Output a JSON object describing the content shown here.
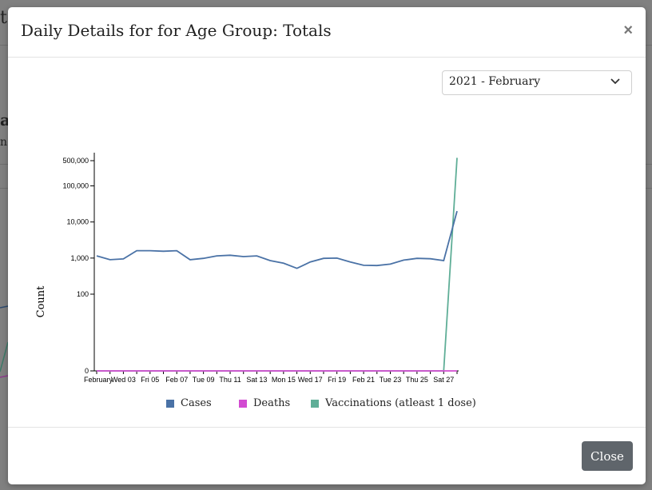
{
  "background": {
    "title_fragment": "t",
    "heading_fragment": "a",
    "text_fragment": "n"
  },
  "modal": {
    "title": "Daily Details for for Age Group: Totals",
    "close_icon": "×",
    "month_select": {
      "value": "2021 - February"
    },
    "close_button": "Close"
  },
  "colors": {
    "cases": "#4a72a6",
    "deaths": "#d24bd1",
    "vaccinations": "#5fae97"
  },
  "chart_data": {
    "type": "line",
    "ylabel": "Count",
    "yscale": "symlog",
    "yticks": [
      {
        "value": 0,
        "label": "0"
      },
      {
        "value": 100,
        "label": "100"
      },
      {
        "value": 1000,
        "label": "1,000"
      },
      {
        "value": 10000,
        "label": "10,000"
      },
      {
        "value": 100000,
        "label": "100,000"
      },
      {
        "value": 500000,
        "label": "500,000"
      }
    ],
    "x": [
      "2021-02-01",
      "2021-02-02",
      "2021-02-03",
      "2021-02-04",
      "2021-02-05",
      "2021-02-06",
      "2021-02-07",
      "2021-02-08",
      "2021-02-09",
      "2021-02-10",
      "2021-02-11",
      "2021-02-12",
      "2021-02-13",
      "2021-02-14",
      "2021-02-15",
      "2021-02-16",
      "2021-02-17",
      "2021-02-18",
      "2021-02-19",
      "2021-02-20",
      "2021-02-21",
      "2021-02-22",
      "2021-02-23",
      "2021-02-24",
      "2021-02-25",
      "2021-02-26",
      "2021-02-27",
      "2021-02-28"
    ],
    "xticks": [
      {
        "index": 0,
        "label": "February"
      },
      {
        "index": 2,
        "label": "Wed 03"
      },
      {
        "index": 4,
        "label": "Fri 05"
      },
      {
        "index": 6,
        "label": "Feb 07"
      },
      {
        "index": 8,
        "label": "Tue 09"
      },
      {
        "index": 10,
        "label": "Thu 11"
      },
      {
        "index": 12,
        "label": "Sat 13"
      },
      {
        "index": 14,
        "label": "Mon 15"
      },
      {
        "index": 16,
        "label": "Wed 17"
      },
      {
        "index": 18,
        "label": "Fri 19"
      },
      {
        "index": 20,
        "label": "Feb 21"
      },
      {
        "index": 22,
        "label": "Tue 23"
      },
      {
        "index": 24,
        "label": "Thu 25"
      },
      {
        "index": 26,
        "label": "Sat 27"
      }
    ],
    "series": [
      {
        "name": "Cases",
        "color_key": "cases",
        "values": [
          1150,
          900,
          950,
          1600,
          1600,
          1550,
          1600,
          900,
          980,
          1150,
          1200,
          1100,
          1150,
          850,
          720,
          520,
          780,
          980,
          1000,
          780,
          630,
          620,
          680,
          880,
          980,
          960,
          850,
          20000
        ]
      },
      {
        "name": "Deaths",
        "color_key": "deaths",
        "values": [
          0,
          0,
          0,
          0,
          0,
          0,
          0,
          0,
          0,
          0,
          0,
          0,
          0,
          0,
          0,
          0,
          0,
          0,
          0,
          0,
          0,
          0,
          0,
          0,
          0,
          0,
          0,
          0
        ]
      },
      {
        "name": "Vaccinations (atleast 1 dose)",
        "color_key": "vaccinations",
        "values": [
          0,
          0,
          0,
          0,
          0,
          0,
          0,
          0,
          0,
          0,
          0,
          0,
          0,
          0,
          0,
          0,
          0,
          0,
          0,
          0,
          0,
          0,
          0,
          0,
          0,
          0,
          0,
          600000
        ]
      }
    ],
    "legend": "bottom"
  }
}
